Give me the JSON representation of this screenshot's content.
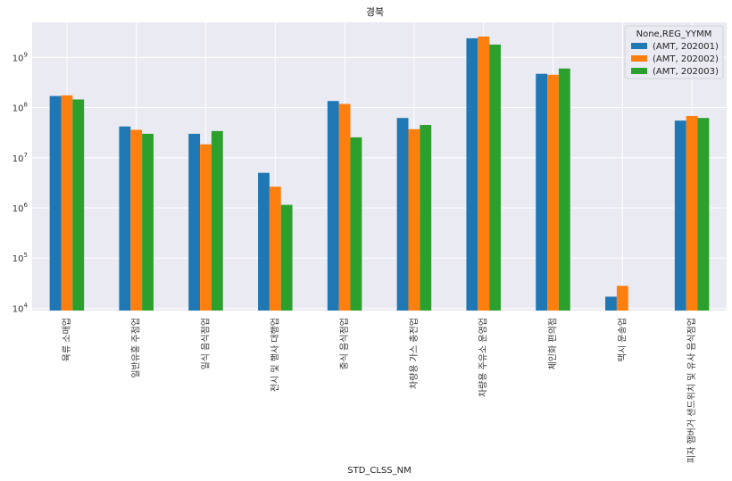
{
  "chart_data": {
    "type": "bar",
    "title": "경북",
    "xlabel": "STD_CLSS_NM",
    "ylabel": "",
    "yscale": "log",
    "ylim": [
      9000,
      5000000000
    ],
    "yticks": [
      {
        "value": 10000,
        "base": "10",
        "exp": "4"
      },
      {
        "value": 100000,
        "base": "10",
        "exp": "5"
      },
      {
        "value": 1000000,
        "base": "10",
        "exp": "6"
      },
      {
        "value": 10000000,
        "base": "10",
        "exp": "7"
      },
      {
        "value": 100000000,
        "base": "10",
        "exp": "8"
      },
      {
        "value": 1000000000,
        "base": "10",
        "exp": "9"
      }
    ],
    "grid": true,
    "legend_title": "None,REG_YYMM",
    "legend_position": "top-right",
    "categories": [
      "육류 소매업",
      "일반유흥 주점업",
      "일식 음식점업",
      "전시 및 행사 대행업",
      "중식 음식점업",
      "차량용 가스 충전업",
      "차량용 주유소 운영업",
      "체인화 편의점",
      "택시 운송업",
      "피자 햄버거 샌드위치 및 유사 음식점업"
    ],
    "series": [
      {
        "name": "(AMT, 202001)",
        "color": "#1f77b4",
        "values": [
          170000000,
          42000000,
          30000000,
          5000000,
          135000000,
          62000000,
          2400000000,
          470000000,
          17000,
          55000000
        ]
      },
      {
        "name": "(AMT, 202002)",
        "color": "#ff7f0e",
        "values": [
          175000000,
          36000000,
          18500000,
          2650000,
          118000000,
          37000000,
          2600000000,
          450000000,
          28000,
          68000000
        ]
      },
      {
        "name": "(AMT, 202003)",
        "color": "#2ca02c",
        "values": [
          145000000,
          30000000,
          34000000,
          1150000,
          25500000,
          45000000,
          1800000000,
          600000000,
          null,
          62000000
        ]
      }
    ]
  }
}
